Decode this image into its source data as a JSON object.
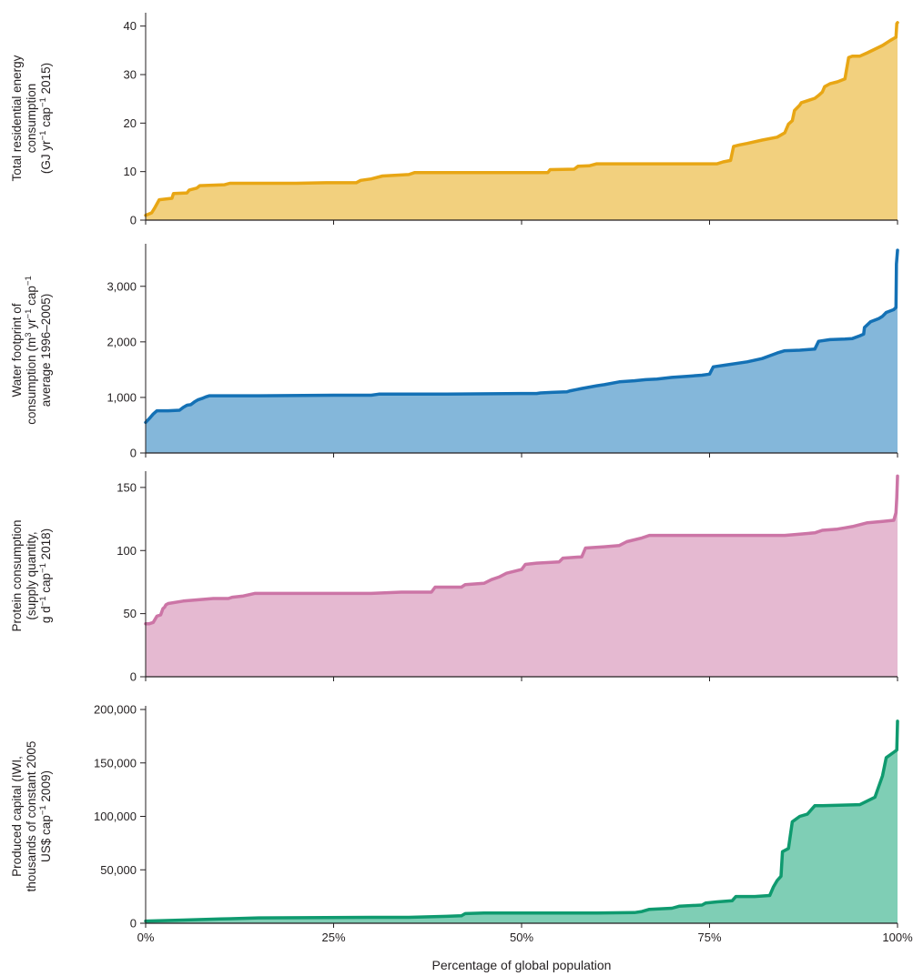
{
  "chart_data": [
    {
      "type": "area",
      "ylabel_lines": [
        [
          {
            "t": "Total residential energy"
          }
        ],
        [
          {
            "t": "consumption"
          }
        ],
        [
          {
            "t": "(GJ yr"
          },
          {
            "t": "−1",
            "sup": true
          },
          {
            "t": " cap"
          },
          {
            "t": "−1",
            "sup": true
          },
          {
            "t": " 2015)"
          }
        ]
      ],
      "ylim": [
        0,
        42
      ],
      "yticks": [
        0,
        10,
        20,
        30,
        40
      ],
      "ytick_labels": [
        "0",
        "10",
        "20",
        "30",
        "40"
      ],
      "line_color": "#e8a614",
      "fill_color": "#f2d07e",
      "points": [
        [
          0,
          1
        ],
        [
          0.8,
          1.5
        ],
        [
          1.2,
          2.5
        ],
        [
          1.8,
          4.2
        ],
        [
          3.5,
          4.5
        ],
        [
          3.7,
          5.5
        ],
        [
          5.5,
          5.6
        ],
        [
          5.8,
          6.2
        ],
        [
          6.8,
          6.6
        ],
        [
          7.2,
          7.1
        ],
        [
          10.5,
          7.3
        ],
        [
          11.2,
          7.6
        ],
        [
          20,
          7.6
        ],
        [
          24,
          7.7
        ],
        [
          28,
          7.7
        ],
        [
          28.6,
          8.2
        ],
        [
          30,
          8.5
        ],
        [
          31.5,
          9.1
        ],
        [
          35,
          9.4
        ],
        [
          35.8,
          9.8
        ],
        [
          45,
          9.8
        ],
        [
          52,
          9.8
        ],
        [
          53.5,
          9.8
        ],
        [
          53.8,
          10.4
        ],
        [
          57,
          10.5
        ],
        [
          57.5,
          11.1
        ],
        [
          59,
          11.2
        ],
        [
          60,
          11.6
        ],
        [
          70,
          11.6
        ],
        [
          76,
          11.6
        ],
        [
          76.8,
          12.0
        ],
        [
          77.8,
          12.3
        ],
        [
          78.2,
          15.2
        ],
        [
          79,
          15.5
        ],
        [
          80,
          15.8
        ],
        [
          82,
          16.5
        ],
        [
          84,
          17.1
        ],
        [
          85,
          18.0
        ],
        [
          85.5,
          19.8
        ],
        [
          86,
          20.5
        ],
        [
          86.3,
          22.6
        ],
        [
          87,
          23.7
        ],
        [
          87.2,
          24.2
        ],
        [
          88,
          24.6
        ],
        [
          89,
          25.1
        ],
        [
          89.5,
          25.7
        ],
        [
          90,
          26.4
        ],
        [
          90.3,
          27.5
        ],
        [
          91,
          28.1
        ],
        [
          92,
          28.5
        ],
        [
          93,
          29.1
        ],
        [
          93.5,
          33.5
        ],
        [
          94,
          33.8
        ],
        [
          95,
          33.8
        ],
        [
          96,
          34.5
        ],
        [
          98,
          36.0
        ],
        [
          99,
          37.0
        ],
        [
          99.8,
          37.7
        ],
        [
          99.9,
          40.5
        ],
        [
          100,
          40.7
        ]
      ]
    },
    {
      "type": "area",
      "ylabel_lines": [
        [
          {
            "t": "Water footprint of"
          }
        ],
        [
          {
            "t": "consumption (m"
          },
          {
            "t": "3",
            "sup": true
          },
          {
            "t": " yr"
          },
          {
            "t": "−1",
            "sup": true
          },
          {
            "t": " cap"
          },
          {
            "t": "−1",
            "sup": true
          }
        ],
        [
          {
            "t": "average 1996–2005)"
          }
        ]
      ],
      "ylim": [
        0,
        3700
      ],
      "yticks": [
        0,
        1000,
        2000,
        3000
      ],
      "ytick_labels": [
        "0",
        "1,000",
        "2,000",
        "3,000"
      ],
      "line_color": "#1471b5",
      "fill_color": "#84b7da",
      "points": [
        [
          0,
          550
        ],
        [
          0.5,
          620
        ],
        [
          1,
          700
        ],
        [
          1.5,
          760
        ],
        [
          3,
          760
        ],
        [
          4.5,
          770
        ],
        [
          5,
          820
        ],
        [
          5.5,
          860
        ],
        [
          6,
          870
        ],
        [
          6.5,
          920
        ],
        [
          7,
          960
        ],
        [
          7.5,
          980
        ],
        [
          8,
          1010
        ],
        [
          8.5,
          1030
        ],
        [
          15,
          1030
        ],
        [
          25,
          1040
        ],
        [
          30,
          1040
        ],
        [
          31,
          1060
        ],
        [
          40,
          1060
        ],
        [
          50,
          1070
        ],
        [
          52,
          1070
        ],
        [
          52.5,
          1080
        ],
        [
          54,
          1090
        ],
        [
          56,
          1100
        ],
        [
          56.5,
          1120
        ],
        [
          58,
          1160
        ],
        [
          60,
          1210
        ],
        [
          61,
          1230
        ],
        [
          63,
          1280
        ],
        [
          65,
          1300
        ],
        [
          66.5,
          1320
        ],
        [
          68,
          1330
        ],
        [
          70,
          1360
        ],
        [
          72,
          1380
        ],
        [
          74,
          1400
        ],
        [
          75,
          1420
        ],
        [
          75.5,
          1550
        ],
        [
          77,
          1580
        ],
        [
          80,
          1640
        ],
        [
          82,
          1700
        ],
        [
          83,
          1750
        ],
        [
          84,
          1800
        ],
        [
          85,
          1840
        ],
        [
          87,
          1850
        ],
        [
          88,
          1860
        ],
        [
          89,
          1870
        ],
        [
          89.5,
          2010
        ],
        [
          91,
          2040
        ],
        [
          93,
          2050
        ],
        [
          94,
          2060
        ],
        [
          95,
          2110
        ],
        [
          95.5,
          2140
        ],
        [
          95.6,
          2260
        ],
        [
          96.4,
          2360
        ],
        [
          97.5,
          2420
        ],
        [
          98,
          2460
        ],
        [
          98.5,
          2530
        ],
        [
          99.5,
          2580
        ],
        [
          99.8,
          2620
        ],
        [
          99.85,
          3400
        ],
        [
          100,
          3650
        ]
      ]
    },
    {
      "type": "area",
      "ylabel_lines": [
        [
          {
            "t": "Protein consumption"
          }
        ],
        [
          {
            "t": "(supply quantity,"
          }
        ],
        [
          {
            "t": "g d"
          },
          {
            "t": "−1",
            "sup": true
          },
          {
            "t": " cap"
          },
          {
            "t": "−1",
            "sup": true
          },
          {
            "t": " 2018)"
          }
        ]
      ],
      "ylim": [
        0,
        160
      ],
      "yticks": [
        0,
        50,
        100,
        150
      ],
      "ytick_labels": [
        "0",
        "50",
        "100",
        "150"
      ],
      "line_color": "#cc75a6",
      "fill_color": "#e5b9d1",
      "points": [
        [
          0,
          42
        ],
        [
          0.5,
          42
        ],
        [
          1,
          43
        ],
        [
          1.5,
          48
        ],
        [
          2,
          49
        ],
        [
          2.3,
          54
        ],
        [
          2.5,
          55
        ],
        [
          2.7,
          57
        ],
        [
          3,
          58
        ],
        [
          5,
          60
        ],
        [
          7,
          61
        ],
        [
          9,
          62
        ],
        [
          11,
          62
        ],
        [
          11.5,
          63
        ],
        [
          13,
          64
        ],
        [
          14.5,
          66
        ],
        [
          20,
          66
        ],
        [
          30,
          66
        ],
        [
          34,
          67
        ],
        [
          38,
          67
        ],
        [
          38.5,
          71
        ],
        [
          42,
          71
        ],
        [
          42.5,
          73
        ],
        [
          45,
          74
        ],
        [
          46,
          77
        ],
        [
          47,
          79
        ],
        [
          48,
          82
        ],
        [
          50,
          85
        ],
        [
          50.5,
          89
        ],
        [
          52,
          90
        ],
        [
          55,
          91
        ],
        [
          55.5,
          94
        ],
        [
          58,
          95
        ],
        [
          58.5,
          102
        ],
        [
          61,
          103
        ],
        [
          63,
          104
        ],
        [
          64,
          107
        ],
        [
          66,
          110
        ],
        [
          67,
          112
        ],
        [
          73,
          112
        ],
        [
          80,
          112
        ],
        [
          85,
          112
        ],
        [
          87,
          113
        ],
        [
          89,
          114
        ],
        [
          90,
          116
        ],
        [
          92,
          117
        ],
        [
          93,
          118
        ],
        [
          94,
          119
        ],
        [
          96,
          122
        ],
        [
          98,
          123
        ],
        [
          99.5,
          124
        ],
        [
          99.8,
          130
        ],
        [
          99.9,
          142
        ],
        [
          100,
          159
        ]
      ]
    },
    {
      "type": "area",
      "ylabel_lines": [
        [
          {
            "t": "Produced capital (IWI,"
          }
        ],
        [
          {
            "t": "thousands of constant 2005"
          }
        ],
        [
          {
            "t": "US$ cap"
          },
          {
            "t": "−1",
            "sup": true
          },
          {
            "t": " 2009)"
          }
        ]
      ],
      "ylim": [
        0,
        200000
      ],
      "yticks": [
        0,
        50000,
        100000,
        150000,
        200000
      ],
      "ytick_labels": [
        "0",
        "50,000",
        "100,000",
        "150,000",
        "200,000"
      ],
      "line_color": "#0f9a6f",
      "fill_color": "#7fceb5",
      "points": [
        [
          0,
          2000
        ],
        [
          5,
          3000
        ],
        [
          10,
          4000
        ],
        [
          15,
          5000
        ],
        [
          30,
          5500
        ],
        [
          35,
          5500
        ],
        [
          40,
          6500
        ],
        [
          42,
          7000
        ],
        [
          42.5,
          9000
        ],
        [
          45,
          9500
        ],
        [
          60,
          9500
        ],
        [
          65,
          10000
        ],
        [
          66,
          11000
        ],
        [
          67,
          13000
        ],
        [
          70,
          14000
        ],
        [
          71,
          16000
        ],
        [
          74,
          17000
        ],
        [
          74.5,
          19000
        ],
        [
          76,
          20000
        ],
        [
          78,
          21000
        ],
        [
          78.5,
          25000
        ],
        [
          80,
          25000
        ],
        [
          81,
          25000
        ],
        [
          83,
          26000
        ],
        [
          83.5,
          34000
        ],
        [
          84,
          40000
        ],
        [
          84.5,
          44000
        ],
        [
          84.7,
          67000
        ],
        [
          85.5,
          70000
        ],
        [
          86,
          95000
        ],
        [
          87,
          100000
        ],
        [
          88,
          102000
        ],
        [
          89,
          110000
        ],
        [
          90,
          110000
        ],
        [
          95,
          111000
        ],
        [
          97,
          118000
        ],
        [
          98,
          138000
        ],
        [
          98.5,
          155000
        ],
        [
          99.5,
          160000
        ],
        [
          99.9,
          162000
        ],
        [
          100,
          189000
        ]
      ]
    }
  ],
  "x_axis": {
    "label": "Percentage of global population",
    "lim": [
      0,
      100
    ],
    "ticks": [
      0,
      25,
      50,
      75,
      100
    ],
    "tick_labels": [
      "0%",
      "25%",
      "50%",
      "75%",
      "100%"
    ],
    "label_ticks_on_bottom_panel_only": true
  }
}
